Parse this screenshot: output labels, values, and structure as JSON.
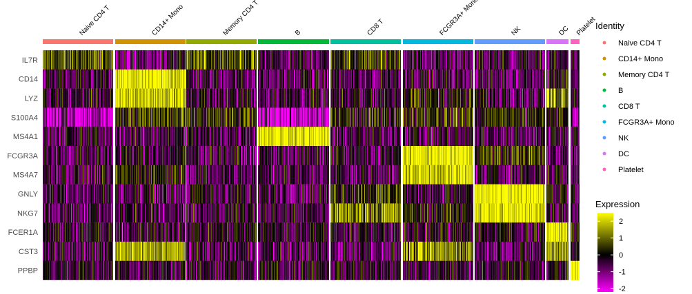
{
  "chart_data": {
    "type": "heatmap",
    "genes": [
      "IL7R",
      "CD14",
      "LYZ",
      "S100A4",
      "MS4A1",
      "FCGR3A",
      "MS4A7",
      "GNLY",
      "NKG7",
      "FCER1A",
      "CST3",
      "PPBP"
    ],
    "groups": [
      {
        "name": "Naive CD4 T",
        "color": "#F8766D"
      },
      {
        "name": "CD14+ Mono",
        "color": "#D39200"
      },
      {
        "name": "Memory CD4 T",
        "color": "#93AA00"
      },
      {
        "name": "B",
        "color": "#00BA38"
      },
      {
        "name": "CD8 T",
        "color": "#00C19F"
      },
      {
        "name": "FCGR3A+ Mono",
        "color": "#00B9E3"
      },
      {
        "name": "NK",
        "color": "#619CFF"
      },
      {
        "name": "DC",
        "color": "#DB72FB"
      },
      {
        "name": "Platelet",
        "color": "#FF61C3"
      }
    ],
    "mean_expression": [
      [
        0.8,
        -0.8,
        0.8,
        -0.6,
        0.6,
        -0.7,
        -0.6,
        -0.5,
        -0.6
      ],
      [
        -0.6,
        2.2,
        -0.6,
        -0.6,
        -0.6,
        -0.4,
        -0.6,
        0.2,
        -0.6
      ],
      [
        -0.3,
        2.0,
        -0.3,
        -0.4,
        -0.3,
        0.2,
        -0.3,
        1.5,
        -0.2
      ],
      [
        -1.5,
        0.6,
        0.3,
        -1.8,
        0.4,
        0.6,
        0.2,
        0.2,
        -1.0
      ],
      [
        -0.5,
        -0.5,
        -0.5,
        2.3,
        -0.5,
        -0.5,
        -0.5,
        -0.3,
        -0.5
      ],
      [
        -0.6,
        -0.3,
        -0.6,
        -0.6,
        -0.5,
        2.3,
        0.5,
        -0.5,
        -0.6
      ],
      [
        -0.5,
        0.3,
        -0.5,
        -0.5,
        -0.5,
        2.0,
        -0.5,
        -0.3,
        -0.5
      ],
      [
        -0.5,
        -0.5,
        -0.4,
        -0.5,
        0.6,
        -0.3,
        2.3,
        -0.4,
        -0.5
      ],
      [
        -0.5,
        -0.4,
        -0.4,
        -0.5,
        1.3,
        0.2,
        2.2,
        -0.3,
        -0.2
      ],
      [
        -0.2,
        -0.2,
        -0.2,
        -0.2,
        -0.2,
        -0.2,
        -0.2,
        2.3,
        -0.2
      ],
      [
        -0.6,
        1.6,
        -0.6,
        -0.6,
        -0.6,
        1.3,
        -0.6,
        1.6,
        -0.4
      ],
      [
        -0.3,
        -0.3,
        -0.3,
        -0.3,
        -0.3,
        -0.3,
        -0.3,
        -0.3,
        2.5
      ]
    ],
    "color_scale": {
      "low": "#FF00FF",
      "mid": "#000000",
      "high": "#FFFF00",
      "range": [
        -2.2,
        2.5
      ]
    },
    "legend_identity_title": "Identity",
    "legend_expression_title": "Expression",
    "legend_ticks": [
      "2",
      "1",
      "0",
      "-1",
      "-2"
    ],
    "legend_tick_values": [
      2,
      1,
      0,
      -1,
      -2
    ]
  }
}
